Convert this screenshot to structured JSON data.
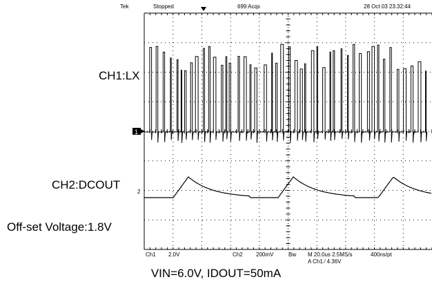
{
  "scope": {
    "header": {
      "brand": "Tek",
      "state": "Stopped",
      "acqs": "699 Acqs",
      "timestamp": "28 Oct 03 23:32:44"
    },
    "ch1_marker": "1",
    "ch2_marker": "2",
    "readout": {
      "ch1_name": "Ch1",
      "ch1_scale": "2.0V",
      "ch2_name": "Ch2",
      "ch2_scale": "200mV",
      "bw": "Bw",
      "timebase": "M 20.0us 2.5MS/s",
      "trigger": "A  Ch1  ⁄  4.36V",
      "resolution": "400ns/pt"
    }
  },
  "labels": {
    "ch1": "CH1:LX",
    "ch2": "CH2:DCOUT",
    "offset": "Off-set Voltage:1.8V"
  },
  "caption": "VIN=6.0V, IDOUT=50mA"
}
